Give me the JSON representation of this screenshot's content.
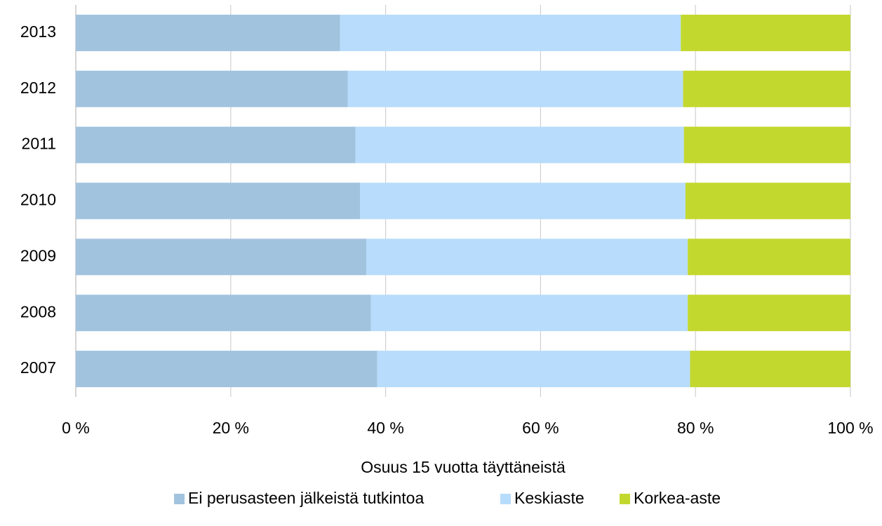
{
  "chart_data": {
    "type": "bar",
    "orientation": "horizontal",
    "stacked": true,
    "xlabel": "Osuus 15 vuotta täyttäneistä",
    "categories": [
      "2013",
      "2012",
      "2011",
      "2010",
      "2009",
      "2008",
      "2007"
    ],
    "series": [
      {
        "name": "Ei perusasteen jälkeistä tutkintoa",
        "color": "#a2c3de",
        "values": [
          34.1,
          35.1,
          36.1,
          36.7,
          37.5,
          38.1,
          38.9
        ]
      },
      {
        "name": "Keskiaste",
        "color": "#b8dcfb",
        "values": [
          44.0,
          43.3,
          42.4,
          42.0,
          41.5,
          40.9,
          40.4
        ]
      },
      {
        "name": "Korkea-aste",
        "color": "#c3d82f",
        "values": [
          21.9,
          21.6,
          21.5,
          21.3,
          21.0,
          21.0,
          20.7
        ]
      }
    ],
    "xlim": [
      0,
      100
    ],
    "xticks": [
      {
        "value": 0,
        "label": "0 %"
      },
      {
        "value": 20,
        "label": "20 %"
      },
      {
        "value": 40,
        "label": "40 %"
      },
      {
        "value": 60,
        "label": "60 %"
      },
      {
        "value": 80,
        "label": "80 %"
      },
      {
        "value": 100,
        "label": "100 %"
      }
    ],
    "grid": true,
    "legend": "bottom"
  }
}
